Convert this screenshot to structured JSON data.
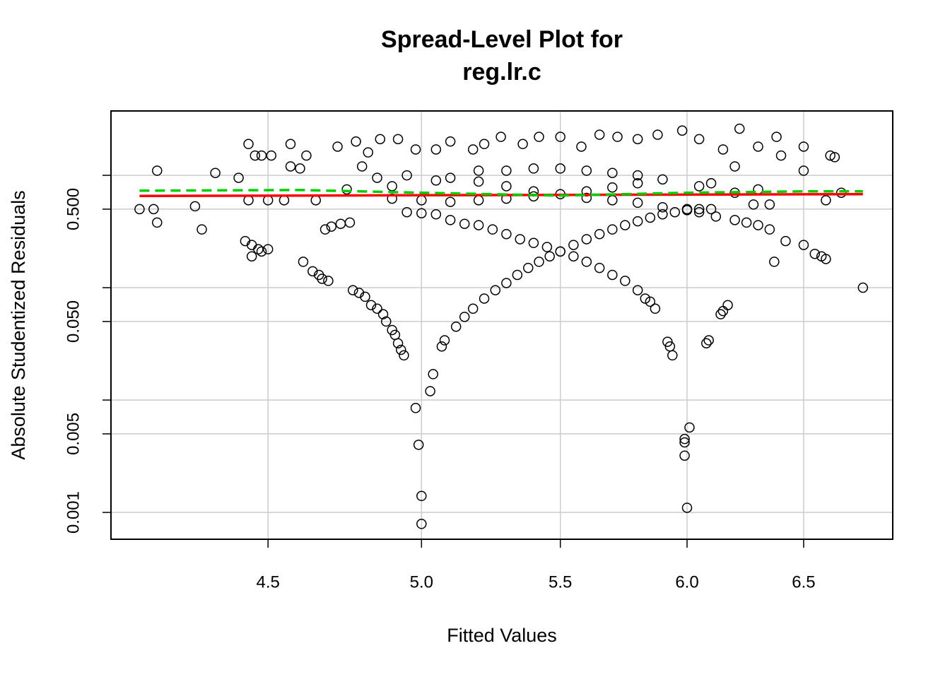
{
  "chart_data": {
    "type": "scatter",
    "title": [
      "Spread-Level Plot for",
      "reg.lr.c"
    ],
    "x_label": "Fitted Values",
    "y_label": "Absolute Studentized Residuals",
    "xlog": true,
    "ylog": true,
    "grid": true,
    "xlim": [
      4.04,
      6.91
    ],
    "ylim": [
      0.000577,
      3.74
    ],
    "xticks": [
      4.5,
      {
        "value": 5,
        "label": "5.0"
      },
      5.5,
      {
        "value": 6,
        "label": "6.0"
      },
      6.5
    ],
    "yticks": [
      {
        "value": 0.001,
        "label": "0.001"
      },
      {
        "value": 0.005,
        "label": "0.005"
      },
      {
        "value": 0.01,
        "label": null
      },
      {
        "value": 0.05,
        "label": "0.050"
      },
      {
        "value": 0.1,
        "label": null
      },
      {
        "value": 0.5,
        "label": "0.500"
      },
      {
        "value": 1,
        "label": null
      }
    ],
    "points": {
      "color": "#000000",
      "x": [
        4.12,
        4.16,
        4.17,
        4.17,
        4.28,
        4.3,
        4.34,
        4.41,
        4.43,
        4.44,
        4.45,
        4.45,
        4.47,
        4.48,
        4.5,
        4.5,
        4.44,
        4.46,
        4.48,
        4.51,
        4.55,
        4.57,
        4.57,
        4.6,
        4.61,
        4.64,
        4.66,
        4.67,
        4.69,
        4.62,
        4.65,
        4.68,
        4.7,
        4.73,
        4.76,
        4.77,
        4.79,
        4.81,
        4.83,
        4.85,
        4.87,
        4.88,
        4.9,
        4.91,
        4.92,
        4.93,
        4.94,
        4.98,
        4.99,
        5.0,
        5.0,
        5.03,
        5.04,
        5.07,
        5.08,
        5.12,
        5.15,
        5.18,
        5.22,
        5.26,
        5.3,
        5.34,
        5.38,
        5.42,
        5.46,
        5.5,
        5.55,
        5.6,
        5.65,
        5.7,
        5.75,
        5.8,
        5.85,
        5.9,
        5.95,
        6.0,
        6.05,
        6.1,
        4.95,
        5.0,
        5.05,
        5.1,
        5.15,
        5.2,
        5.25,
        5.3,
        5.35,
        5.4,
        5.45,
        5.5,
        5.55,
        5.6,
        5.65,
        5.7,
        5.75,
        5.8,
        5.83,
        5.85,
        5.87,
        5.92,
        5.93,
        5.94,
        5.99,
        5.99,
        5.99,
        6.0,
        6.01,
        6.08,
        6.09,
        6.14,
        6.15,
        6.17,
        6.05,
        6.12,
        6.2,
        6.25,
        6.3,
        6.35,
        6.42,
        6.5,
        6.55,
        6.58,
        6.6,
        6.37,
        6.77,
        4.9,
        5.0,
        5.1,
        5.2,
        5.3,
        5.4,
        5.5,
        5.6,
        5.7,
        5.8,
        5.9,
        5.1,
        5.2,
        5.3,
        5.4,
        5.6,
        5.7,
        5.8,
        5.9,
        6.0,
        5.2,
        5.3,
        5.4,
        5.5,
        5.6,
        5.7,
        5.8,
        4.72,
        4.78,
        4.82,
        4.86,
        4.92,
        4.98,
        5.05,
        5.1,
        5.18,
        5.22,
        5.28,
        5.36,
        5.42,
        5.5,
        5.58,
        5.65,
        5.72,
        5.8,
        5.88,
        5.98,
        6.05,
        6.15,
        6.22,
        6.3,
        6.38,
        6.5,
        6.62,
        6.64,
        6.5,
        6.6,
        6.67,
        6.4,
        6.2,
        6.1,
        6.28,
        6.35,
        6.05,
        4.8,
        4.85,
        4.95,
        5.05,
        4.75,
        4.9,
        6.2,
        6.3
      ],
      "y": [
        0.5,
        0.5,
        0.38,
        1.1,
        0.53,
        0.33,
        1.05,
        0.95,
        0.26,
        0.6,
        0.19,
        0.24,
        0.22,
        0.21,
        0.22,
        0.6,
        1.9,
        1.5,
        1.5,
        1.5,
        0.6,
        1.9,
        1.2,
        1.15,
        0.17,
        0.14,
        0.13,
        0.12,
        0.115,
        1.5,
        0.6,
        0.33,
        0.35,
        0.37,
        0.38,
        0.095,
        0.09,
        0.083,
        0.07,
        0.065,
        0.058,
        0.05,
        0.042,
        0.038,
        0.032,
        0.028,
        0.025,
        0.0085,
        0.004,
        0.0014,
        0.00079,
        0.012,
        0.017,
        0.03,
        0.034,
        0.045,
        0.055,
        0.065,
        0.08,
        0.095,
        0.11,
        0.13,
        0.15,
        0.17,
        0.19,
        0.21,
        0.24,
        0.27,
        0.3,
        0.33,
        0.36,
        0.39,
        0.42,
        0.45,
        0.47,
        0.49,
        0.5,
        0.5,
        0.47,
        0.46,
        0.45,
        0.4,
        0.37,
        0.36,
        0.33,
        0.3,
        0.27,
        0.25,
        0.23,
        0.21,
        0.19,
        0.17,
        0.15,
        0.13,
        0.115,
        0.095,
        0.08,
        0.075,
        0.065,
        0.033,
        0.03,
        0.025,
        0.0045,
        0.0042,
        0.0032,
        0.0011,
        0.0057,
        0.032,
        0.034,
        0.058,
        0.062,
        0.07,
        0.47,
        0.43,
        0.4,
        0.38,
        0.36,
        0.33,
        0.26,
        0.24,
        0.2,
        0.19,
        0.18,
        0.17,
        0.1,
        0.62,
        0.6,
        0.58,
        0.6,
        0.62,
        0.65,
        0.68,
        0.72,
        0.78,
        0.85,
        0.92,
        0.95,
        0.88,
        0.8,
        0.72,
        0.63,
        0.6,
        0.57,
        0.52,
        0.5,
        1.1,
        1.1,
        1.15,
        1.15,
        1.1,
        1.05,
        1.0,
        1.8,
        2.0,
        1.6,
        2.1,
        2.1,
        1.7,
        1.7,
        2.0,
        1.7,
        1.9,
        2.2,
        1.9,
        2.2,
        2.2,
        1.8,
        2.3,
        2.2,
        2.1,
        2.3,
        2.5,
        2.1,
        1.7,
        2.6,
        1.8,
        2.2,
        1.8,
        1.5,
        1.45,
        1.1,
        0.6,
        0.7,
        1.5,
        1.2,
        0.85,
        0.55,
        0.55,
        0.8,
        1.2,
        0.95,
        1.0,
        0.9,
        0.75,
        0.8,
        0.7,
        0.75
      ]
    },
    "lines": [
      {
        "color": "#ff0000",
        "dashed": false,
        "x": [
          4.12,
          6.77
        ],
        "y": [
          0.655,
          0.68
        ]
      },
      {
        "color": "#00cc00",
        "dashed": true,
        "x": [
          4.12,
          4.6,
          5.0,
          5.5,
          6.0,
          6.5,
          6.77
        ],
        "y": [
          0.73,
          0.74,
          0.7,
          0.66,
          0.7,
          0.72,
          0.72
        ]
      }
    ]
  }
}
